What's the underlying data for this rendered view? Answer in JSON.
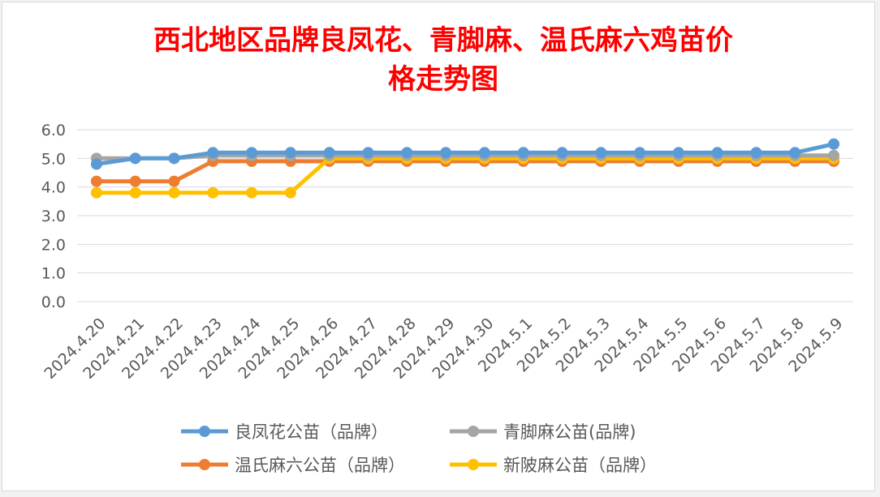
{
  "chart_data": {
    "type": "line",
    "title_lines": [
      "西北地区品牌良凤花、青脚麻、温氏麻六鸡苗价",
      "格走势图"
    ],
    "xlabel": "",
    "ylabel": "",
    "ylim": [
      0,
      6
    ],
    "y_ticks": [
      "0.0",
      "1.0",
      "2.0",
      "3.0",
      "4.0",
      "5.0",
      "6.0"
    ],
    "grid": true,
    "legend_position": "bottom",
    "categories": [
      "2024.4.20",
      "2024.4.21",
      "2024.4.22",
      "2024.4.23",
      "2024.4.24",
      "2024.4.25",
      "2024.4.26",
      "2024.4.27",
      "2024.4.28",
      "2024.4.29",
      "2024.4.30",
      "2024.5.1",
      "2024.5.2",
      "2024.5.3",
      "2024.5.4",
      "2024.5.5",
      "2024.5.6",
      "2024.5.7",
      "2024.5.8",
      "2024.5.9"
    ],
    "series": [
      {
        "name": "良凤花公苗（品牌）",
        "color": "#5b9bd5",
        "values": [
          4.8,
          5.0,
          5.0,
          5.2,
          5.2,
          5.2,
          5.2,
          5.2,
          5.2,
          5.2,
          5.2,
          5.2,
          5.2,
          5.2,
          5.2,
          5.2,
          5.2,
          5.2,
          5.2,
          5.5
        ]
      },
      {
        "name": "青脚麻公苗(品牌)",
        "color": "#a5a5a5",
        "values": [
          5.0,
          5.0,
          5.0,
          5.1,
          5.1,
          5.1,
          5.1,
          5.1,
          5.1,
          5.1,
          5.1,
          5.1,
          5.1,
          5.1,
          5.1,
          5.1,
          5.1,
          5.1,
          5.1,
          5.1
        ]
      },
      {
        "name": "温氏麻六公苗（品牌）",
        "color": "#ed7d31",
        "values": [
          4.2,
          4.2,
          4.2,
          4.9,
          4.9,
          4.9,
          4.9,
          4.9,
          4.9,
          4.9,
          4.9,
          4.9,
          4.9,
          4.9,
          4.9,
          4.9,
          4.9,
          4.9,
          4.9,
          4.9
        ]
      },
      {
        "name": "新陂麻公苗（品牌）",
        "color": "#ffc000",
        "values": [
          3.8,
          3.8,
          3.8,
          3.8,
          3.8,
          3.8,
          5.0,
          5.0,
          5.0,
          5.0,
          5.0,
          5.0,
          5.0,
          5.0,
          5.0,
          5.0,
          5.0,
          5.0,
          5.0,
          5.0
        ]
      }
    ],
    "draw_order": [
      2,
      3,
      1,
      0
    ],
    "legend_layout": [
      [
        0,
        2
      ],
      [
        1,
        3
      ]
    ]
  }
}
